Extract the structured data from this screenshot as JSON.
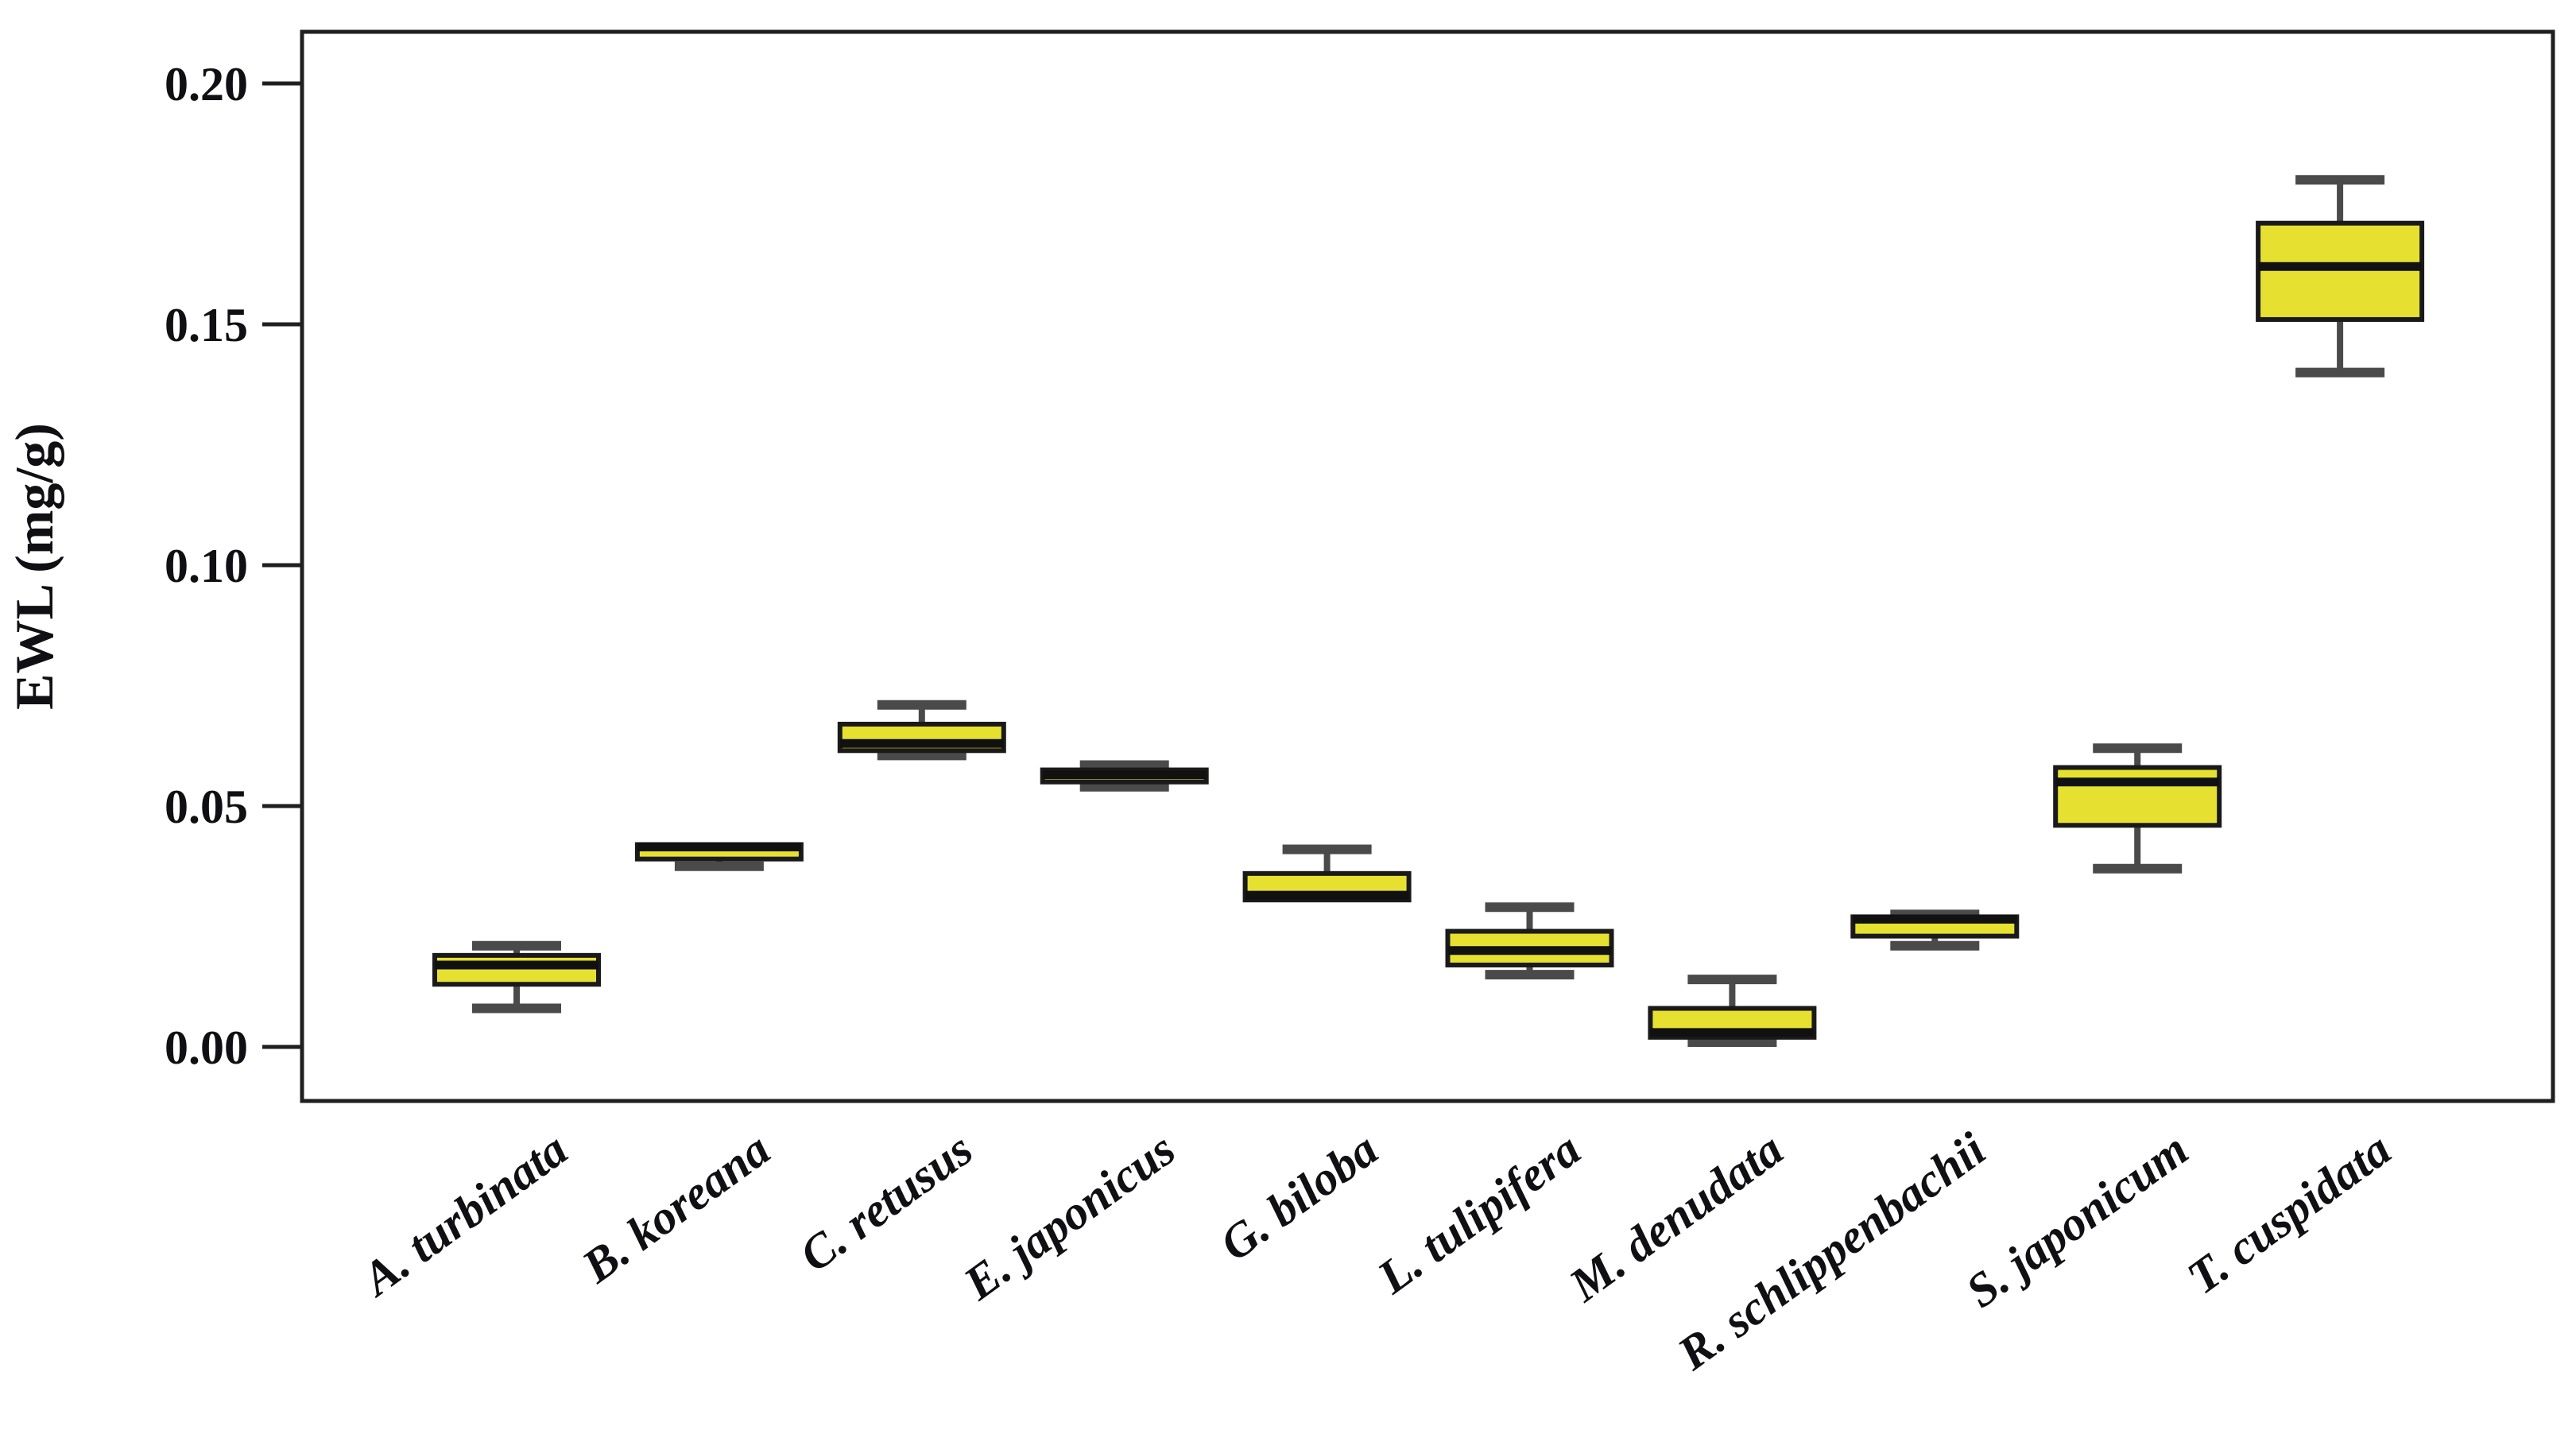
{
  "chart_data": {
    "type": "boxplot",
    "title": "",
    "xlabel": "",
    "ylabel": "EWL (mg/g)",
    "yticks": [
      "0.00",
      "0.05",
      "0.10",
      "0.15",
      "0.20"
    ],
    "ylim": [
      -0.011,
      0.211
    ],
    "grid": false,
    "legend": "none",
    "box_fill_color": "#e6e130",
    "box_border_color": "#1a1a1a",
    "median_color": "#111111",
    "whisker_color": "#4a4a4a",
    "frame_color": "#1f1f1f",
    "label_color": "#101014",
    "categories": [
      "A. turbinata",
      "B. koreana",
      "C. retusus",
      "E. japonicus",
      "G. biloba",
      "L. tulipifera",
      "M. denudata",
      "R. schlippenbachii",
      "S. japonicum",
      "T. cuspidata"
    ],
    "series": [
      {
        "name": "A. turbinata",
        "min": 0.008,
        "q1": 0.013,
        "median": 0.017,
        "q3": 0.019,
        "max": 0.021
      },
      {
        "name": "B. koreana",
        "min": 0.0375,
        "q1": 0.039,
        "median": 0.0415,
        "q3": 0.042,
        "max": 0.042
      },
      {
        "name": "C. retusus",
        "min": 0.0605,
        "q1": 0.0615,
        "median": 0.063,
        "q3": 0.067,
        "max": 0.071
      },
      {
        "name": "E. japonicus",
        "min": 0.054,
        "q1": 0.055,
        "median": 0.0565,
        "q3": 0.0575,
        "max": 0.0585
      },
      {
        "name": "G. biloba",
        "min": 0.0305,
        "q1": 0.0305,
        "median": 0.0315,
        "q3": 0.036,
        "max": 0.041
      },
      {
        "name": "L. tulipifera",
        "min": 0.015,
        "q1": 0.017,
        "median": 0.02,
        "q3": 0.024,
        "max": 0.029
      },
      {
        "name": "M. denudata",
        "min": 0.001,
        "q1": 0.002,
        "median": 0.003,
        "q3": 0.008,
        "max": 0.014
      },
      {
        "name": "R. schlippenbachii",
        "min": 0.021,
        "q1": 0.023,
        "median": 0.0265,
        "q3": 0.027,
        "max": 0.0275
      },
      {
        "name": "S. japonicum",
        "min": 0.037,
        "q1": 0.046,
        "median": 0.055,
        "q3": 0.058,
        "max": 0.062
      },
      {
        "name": "T. cuspidata",
        "min": 0.14,
        "q1": 0.151,
        "median": 0.162,
        "q3": 0.171,
        "max": 0.18
      }
    ]
  }
}
